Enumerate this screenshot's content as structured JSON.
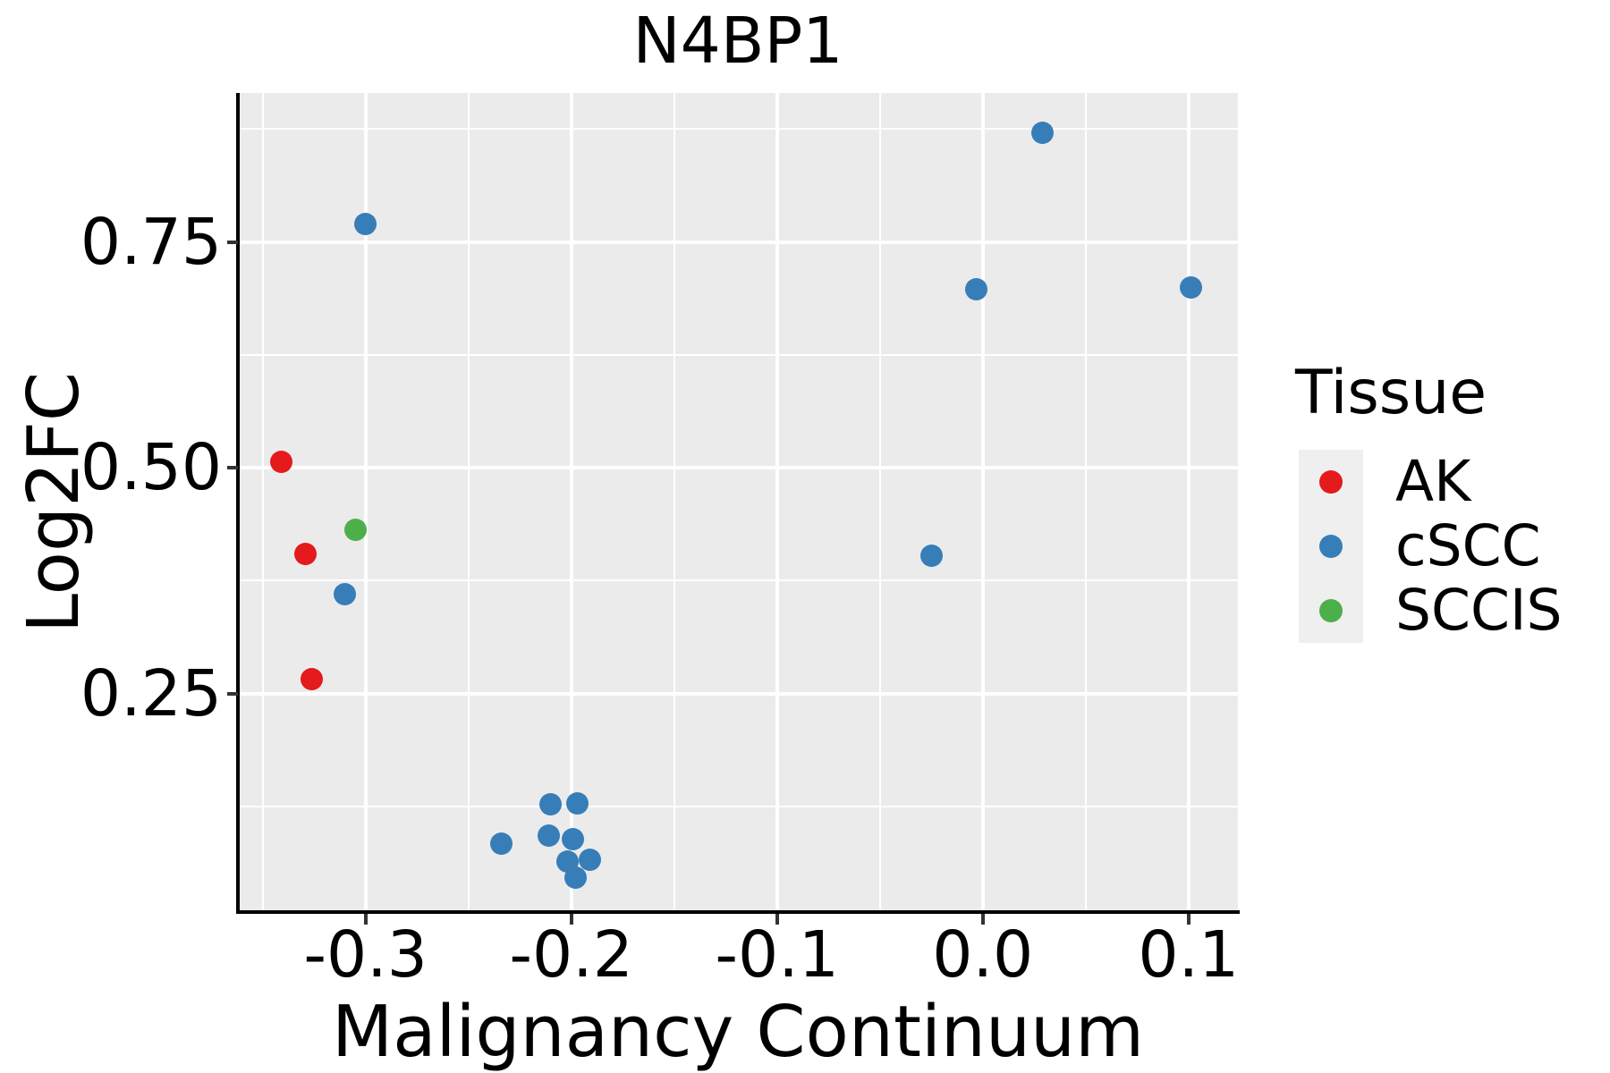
{
  "chart_data": {
    "type": "scatter",
    "title": "N4BP1",
    "xlabel": "Malignancy Continuum",
    "ylabel": "Log2FC",
    "xlim": [
      -0.362,
      0.124
    ],
    "ylim": [
      0.008,
      0.915
    ],
    "grid": true,
    "legend_position": "right",
    "x_ticks": {
      "values": [
        -0.3,
        -0.2,
        -0.1,
        0.0,
        0.1
      ],
      "labels": [
        "-0.3",
        "-0.2",
        "-0.1",
        "0.0",
        "0.1"
      ]
    },
    "y_ticks": {
      "values": [
        0.25,
        0.5,
        0.75
      ],
      "labels": [
        "0.25",
        "0.50",
        "0.75"
      ]
    },
    "x_minor": [
      -0.35,
      -0.25,
      -0.15,
      -0.05,
      0.05
    ],
    "y_minor": [
      0.125,
      0.375,
      0.625,
      0.875
    ],
    "series": [
      {
        "name": "AK",
        "color": "#e41a1c",
        "points": [
          [
            -0.341,
            0.507
          ],
          [
            -0.329,
            0.405
          ],
          [
            -0.326,
            0.266
          ]
        ]
      },
      {
        "name": "cSCC",
        "color": "#377eb8",
        "points": [
          [
            -0.3,
            0.77
          ],
          [
            0.029,
            0.871
          ],
          [
            -0.003,
            0.698
          ],
          [
            0.101,
            0.7
          ],
          [
            -0.025,
            0.403
          ],
          [
            -0.31,
            0.36
          ],
          [
            -0.21,
            0.127
          ],
          [
            -0.197,
            0.128
          ],
          [
            -0.234,
            0.084
          ],
          [
            -0.211,
            0.093
          ],
          [
            -0.199,
            0.089
          ],
          [
            -0.202,
            0.064
          ],
          [
            -0.191,
            0.066
          ],
          [
            -0.198,
            0.046
          ]
        ]
      },
      {
        "name": "SCCIS",
        "color": "#4daf4a",
        "points": [
          [
            -0.305,
            0.431
          ]
        ]
      }
    ]
  },
  "legend": {
    "title": "Tissue",
    "items": [
      {
        "label": "AK",
        "color": "#e41a1c"
      },
      {
        "label": "cSCC",
        "color": "#377eb8"
      },
      {
        "label": "SCCIS",
        "color": "#4daf4a"
      }
    ]
  },
  "colors": {
    "panel_background": "#ebebeb",
    "gridline": "#ffffff",
    "axis_line": "#000000",
    "tick_mark": "#333333",
    "text": "#000000",
    "legend_key_background": "#efefef"
  }
}
